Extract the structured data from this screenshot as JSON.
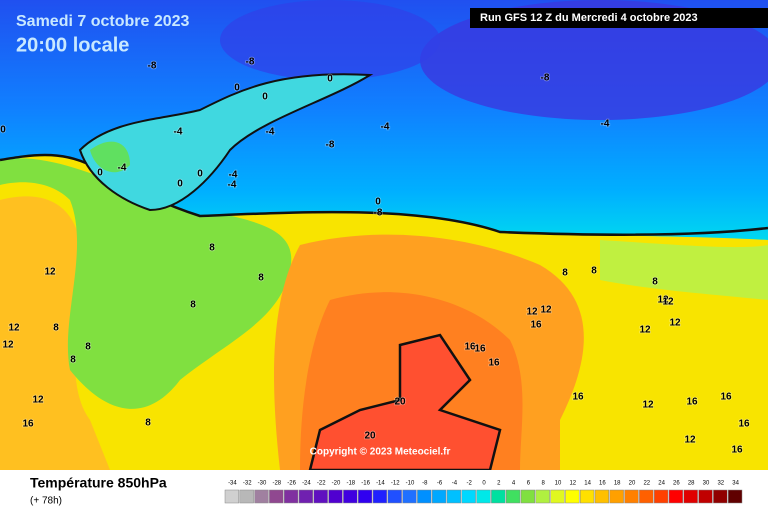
{
  "header": {
    "date": "Samedi 7 octobre 2023",
    "time": "20:00 locale",
    "run": "Run GFS 12 Z du Mercredi 4 octobre 2023"
  },
  "map": {
    "contour_labels": [
      -8,
      -8,
      0,
      0,
      -8,
      0,
      -4,
      -4,
      -4,
      -8,
      -4,
      0,
      0,
      -4,
      0,
      0,
      -4,
      -4,
      0,
      -8,
      8,
      8,
      12,
      8,
      8,
      12,
      12,
      8,
      8,
      12,
      16,
      8,
      20,
      20,
      16,
      16,
      16,
      12,
      12,
      16,
      8,
      8,
      8,
      12,
      12,
      12,
      12,
      16,
      16,
      12,
      12,
      16,
      16,
      16
    ],
    "copyright": "Copyright © 2023 Meteociel.fr"
  },
  "footer": {
    "title": "Température 850hPa",
    "lead": "(+ 78h)"
  },
  "legend": {
    "scale": [
      -34,
      -32,
      -30,
      -28,
      -26,
      -24,
      -22,
      -20,
      -18,
      -16,
      -14,
      -12,
      -10,
      -8,
      -6,
      -4,
      -2,
      0,
      2,
      4,
      6,
      8,
      10,
      12,
      14,
      16,
      18,
      20,
      22,
      24,
      26,
      28,
      30,
      32,
      34
    ],
    "colors": [
      "#d0d0d0",
      "#b8b8b8",
      "#a080a0",
      "#904890",
      "#8030a0",
      "#7020b0",
      "#6010c0",
      "#5000d0",
      "#4000e0",
      "#3000f0",
      "#2020ff",
      "#2050ff",
      "#2070ff",
      "#0090ff",
      "#00a8ff",
      "#00c0ff",
      "#00d8ff",
      "#00e8e8",
      "#00e0a0",
      "#40e060",
      "#80e040",
      "#b0f040",
      "#e0f820",
      "#ffff00",
      "#ffe000",
      "#ffc000",
      "#ffa000",
      "#ff8000",
      "#ff6000",
      "#ff4000",
      "#ff0000",
      "#e00000",
      "#c00000",
      "#900000",
      "#600000"
    ]
  }
}
